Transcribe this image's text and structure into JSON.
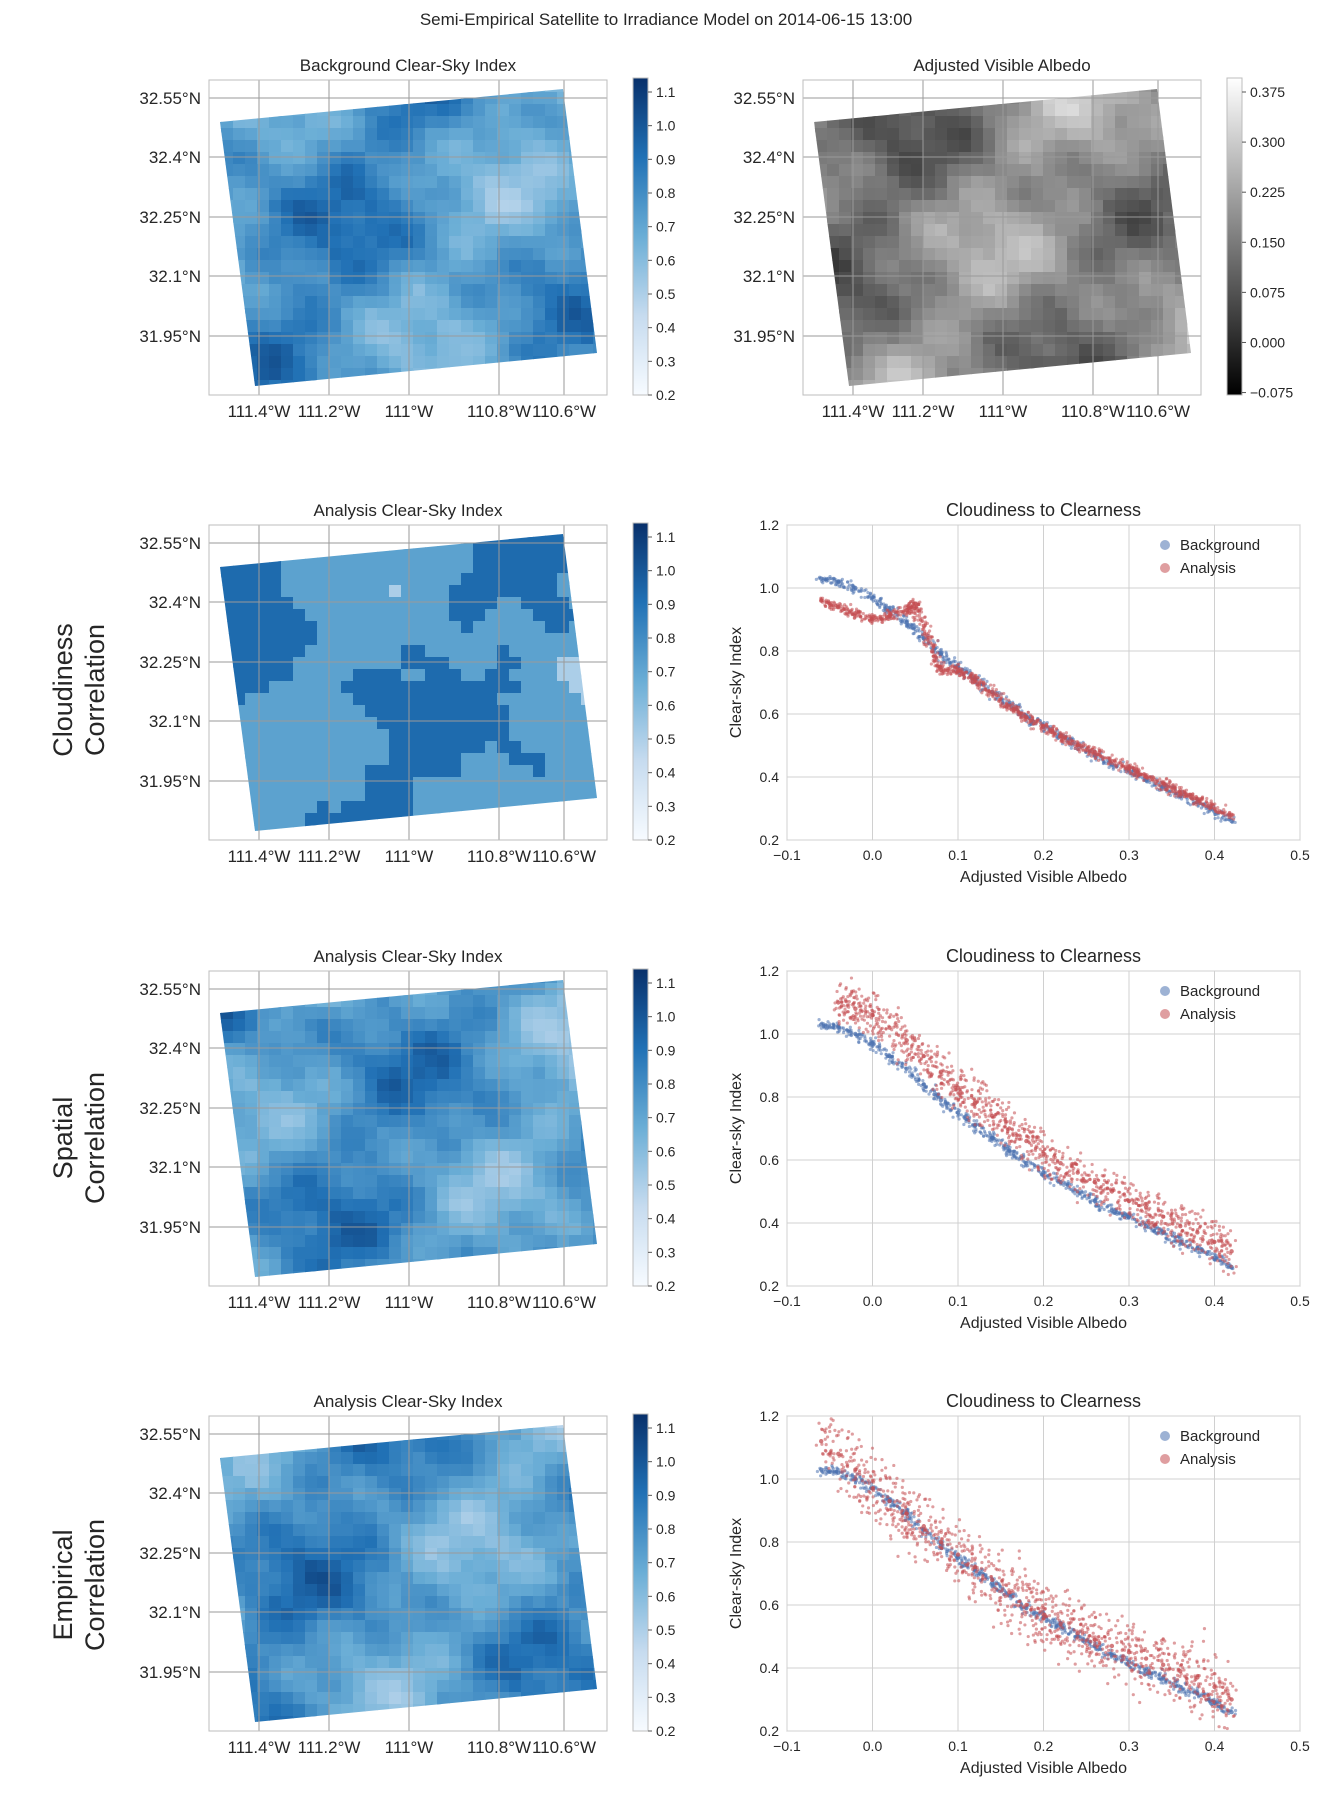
{
  "figure": {
    "title": "Semi-Empirical Satellite to Irradiance Model on 2014-06-15 13:00",
    "row_labels": [
      {
        "line1": "",
        "line2": ""
      },
      {
        "line1": "Cloudiness",
        "line2": "Correlation"
      },
      {
        "line1": "Spatial",
        "line2": "Correlation"
      },
      {
        "line1": "Empirical",
        "line2": "Correlation"
      }
    ]
  },
  "maps": [
    {
      "title": "Background Clear-Sky Index",
      "cmap": "blues",
      "variant": 0
    },
    {
      "title": "Adjusted Visible Albedo",
      "cmap": "greys",
      "variant": 1
    },
    {
      "title": "Analysis Clear-Sky Index",
      "cmap": "blues",
      "variant": 2
    },
    {
      "title": "Analysis Clear-Sky Index",
      "cmap": "blues",
      "variant": 3
    },
    {
      "title": "Analysis Clear-Sky Index",
      "cmap": "blues",
      "variant": 4
    }
  ],
  "map_axes": {
    "lat_ticks": [
      "32.55°N",
      "32.4°N",
      "32.25°N",
      "32.1°N",
      "31.95°N"
    ],
    "lon_ticks": [
      "111.4°W",
      "111.2°W",
      "111°W",
      "110.8°W",
      "110.6°W"
    ]
  },
  "colorbars": {
    "blues": {
      "ticks": [
        "1.1",
        "1.0",
        "0.9",
        "0.8",
        "0.7",
        "0.6",
        "0.5",
        "0.4",
        "0.3",
        "0.2"
      ],
      "colors": [
        "#08306b",
        "#2171b5",
        "#6baed6",
        "#c6dbef",
        "#f7fbff"
      ]
    },
    "greys": {
      "ticks": [
        "0.375",
        "0.300",
        "0.225",
        "0.150",
        "0.075",
        "0.000",
        "−0.075"
      ],
      "colors": [
        "#ffffff",
        "#000000"
      ]
    }
  },
  "chart_data": [
    {
      "type": "scatter",
      "title": "Cloudiness to Clearness",
      "xlabel": "Adjusted Visible Albedo",
      "ylabel": "Clear-sky Index",
      "xlim": [
        -0.1,
        0.5
      ],
      "ylim": [
        0.2,
        1.2
      ],
      "xticks": [
        "−0.1",
        "0.0",
        "0.1",
        "0.2",
        "0.3",
        "0.4",
        "0.5"
      ],
      "yticks": [
        "0.2",
        "0.4",
        "0.6",
        "0.8",
        "1.0",
        "1.2"
      ],
      "legend": "top-right",
      "series": [
        {
          "name": "Background",
          "color": "#4c72b0",
          "x": [
            -0.06,
            -0.04,
            -0.02,
            0.0,
            0.02,
            0.04,
            0.06,
            0.08,
            0.1,
            0.12,
            0.14,
            0.16,
            0.18,
            0.2,
            0.22,
            0.24,
            0.26,
            0.28,
            0.3,
            0.32,
            0.34,
            0.36,
            0.38,
            0.4,
            0.42
          ],
          "y": [
            1.03,
            1.02,
            1.0,
            0.97,
            0.93,
            0.89,
            0.84,
            0.79,
            0.75,
            0.71,
            0.67,
            0.63,
            0.59,
            0.56,
            0.53,
            0.5,
            0.47,
            0.44,
            0.42,
            0.39,
            0.37,
            0.34,
            0.32,
            0.29,
            0.26
          ]
        },
        {
          "name": "Analysis",
          "color": "#c44e52",
          "x": [
            -0.06,
            -0.04,
            -0.02,
            0.0,
            0.02,
            0.04,
            0.05,
            0.06,
            0.07,
            0.08,
            0.1,
            0.12,
            0.14,
            0.16,
            0.18,
            0.2,
            0.22,
            0.24,
            0.26,
            0.28,
            0.3,
            0.32,
            0.34,
            0.36,
            0.38,
            0.4,
            0.42
          ],
          "y": [
            0.96,
            0.94,
            0.92,
            0.9,
            0.91,
            0.93,
            0.95,
            0.88,
            0.8,
            0.74,
            0.74,
            0.71,
            0.67,
            0.62,
            0.59,
            0.56,
            0.53,
            0.5,
            0.48,
            0.45,
            0.43,
            0.4,
            0.38,
            0.35,
            0.33,
            0.3,
            0.28
          ]
        }
      ]
    },
    {
      "type": "scatter",
      "title": "Cloudiness to Clearness",
      "xlabel": "Adjusted Visible Albedo",
      "ylabel": "Clear-sky Index",
      "xlim": [
        -0.1,
        0.5
      ],
      "ylim": [
        0.2,
        1.2
      ],
      "xticks": [
        "−0.1",
        "0.0",
        "0.1",
        "0.2",
        "0.3",
        "0.4",
        "0.5"
      ],
      "yticks": [
        "0.2",
        "0.4",
        "0.6",
        "0.8",
        "1.0",
        "1.2"
      ],
      "legend": "top-right",
      "series": [
        {
          "name": "Background",
          "color": "#4c72b0",
          "x": [
            -0.06,
            -0.04,
            -0.02,
            0.0,
            0.02,
            0.04,
            0.06,
            0.08,
            0.1,
            0.12,
            0.14,
            0.16,
            0.18,
            0.2,
            0.22,
            0.24,
            0.26,
            0.28,
            0.3,
            0.32,
            0.34,
            0.36,
            0.38,
            0.4,
            0.42
          ],
          "y": [
            1.03,
            1.02,
            1.0,
            0.97,
            0.93,
            0.89,
            0.84,
            0.79,
            0.75,
            0.71,
            0.67,
            0.63,
            0.59,
            0.56,
            0.53,
            0.5,
            0.47,
            0.44,
            0.42,
            0.39,
            0.37,
            0.34,
            0.32,
            0.29,
            0.26
          ]
        },
        {
          "name": "Analysis",
          "color": "#c44e52",
          "x": [
            -0.04,
            -0.02,
            0.0,
            0.02,
            0.04,
            0.06,
            0.08,
            0.1,
            0.12,
            0.14,
            0.16,
            0.18,
            0.2,
            0.22,
            0.24,
            0.26,
            0.28,
            0.3,
            0.32,
            0.34,
            0.36,
            0.38,
            0.4,
            0.42
          ],
          "y": [
            1.1,
            1.08,
            1.06,
            1.02,
            0.98,
            0.93,
            0.88,
            0.83,
            0.78,
            0.74,
            0.7,
            0.66,
            0.62,
            0.59,
            0.56,
            0.53,
            0.5,
            0.47,
            0.45,
            0.42,
            0.39,
            0.37,
            0.34,
            0.31
          ]
        }
      ]
    },
    {
      "type": "scatter",
      "title": "Cloudiness to Clearness",
      "xlabel": "Adjusted Visible Albedo",
      "ylabel": "Clear-sky Index",
      "xlim": [
        -0.1,
        0.5
      ],
      "ylim": [
        0.2,
        1.2
      ],
      "xticks": [
        "−0.1",
        "0.0",
        "0.1",
        "0.2",
        "0.3",
        "0.4",
        "0.5"
      ],
      "yticks": [
        "0.2",
        "0.4",
        "0.6",
        "0.8",
        "1.0",
        "1.2"
      ],
      "legend": "top-right",
      "series": [
        {
          "name": "Background",
          "color": "#4c72b0",
          "x": [
            -0.06,
            -0.04,
            -0.02,
            0.0,
            0.02,
            0.04,
            0.06,
            0.08,
            0.1,
            0.12,
            0.14,
            0.16,
            0.18,
            0.2,
            0.22,
            0.24,
            0.26,
            0.28,
            0.3,
            0.32,
            0.34,
            0.36,
            0.38,
            0.4,
            0.42
          ],
          "y": [
            1.03,
            1.02,
            1.0,
            0.97,
            0.93,
            0.89,
            0.84,
            0.79,
            0.75,
            0.71,
            0.67,
            0.63,
            0.59,
            0.56,
            0.53,
            0.5,
            0.47,
            0.44,
            0.42,
            0.39,
            0.37,
            0.34,
            0.32,
            0.29,
            0.26
          ]
        },
        {
          "name": "Analysis",
          "color": "#c44e52",
          "x": [
            -0.06,
            -0.04,
            -0.02,
            0.0,
            0.02,
            0.04,
            0.06,
            0.08,
            0.1,
            0.12,
            0.14,
            0.16,
            0.18,
            0.2,
            0.22,
            0.24,
            0.26,
            0.28,
            0.3,
            0.32,
            0.34,
            0.36,
            0.38,
            0.4,
            0.42
          ],
          "y": [
            1.12,
            1.08,
            1.03,
            0.97,
            0.93,
            0.89,
            0.85,
            0.8,
            0.76,
            0.72,
            0.68,
            0.64,
            0.6,
            0.57,
            0.54,
            0.51,
            0.49,
            0.47,
            0.45,
            0.43,
            0.41,
            0.39,
            0.37,
            0.34,
            0.3
          ]
        }
      ]
    }
  ]
}
